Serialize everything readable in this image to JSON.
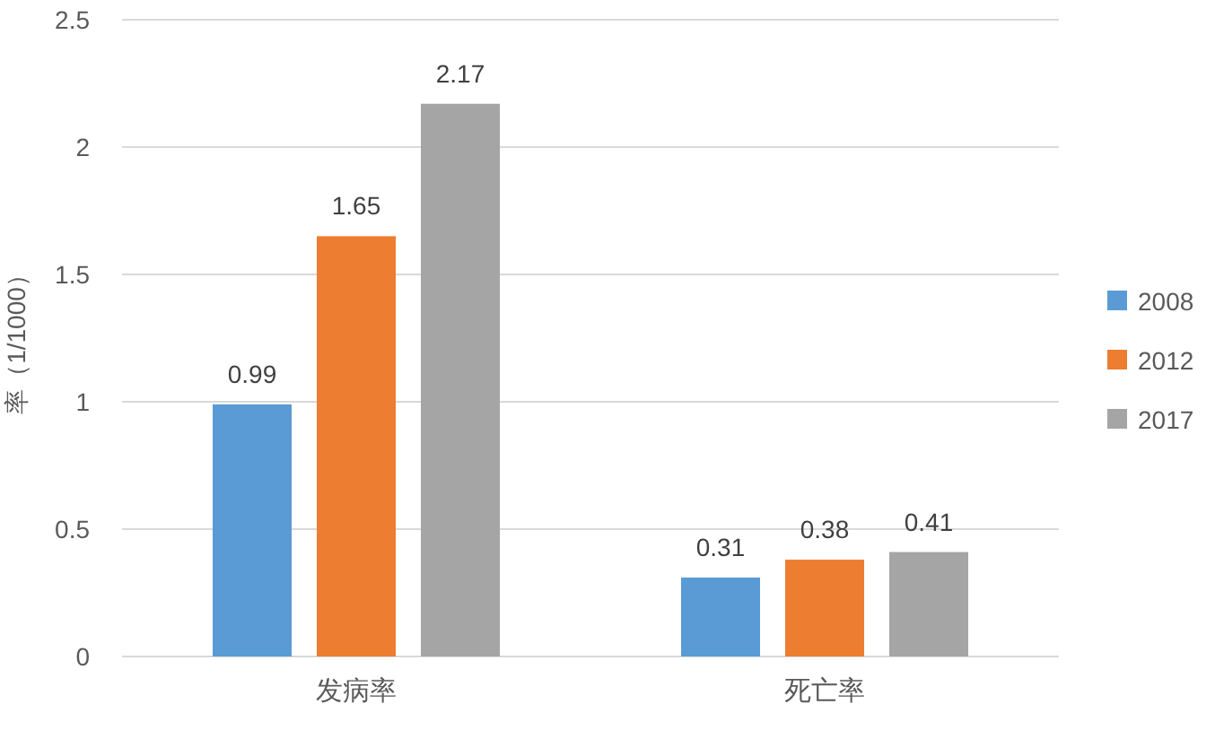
{
  "chart_data": {
    "type": "bar",
    "ylabel": "率（1/1000）",
    "categories": [
      "发病率",
      "死亡率"
    ],
    "series": [
      {
        "name": "2008",
        "color": "#5b9bd5",
        "values": [
          0.99,
          0.31
        ]
      },
      {
        "name": "2012",
        "color": "#ed7d31",
        "values": [
          1.65,
          0.38
        ]
      },
      {
        "name": "2017",
        "color": "#a5a5a5",
        "values": [
          2.17,
          0.41
        ]
      }
    ],
    "ylim": [
      0,
      2.5
    ],
    "yticks": [
      0,
      0.5,
      1,
      1.5,
      2,
      2.5
    ],
    "grid": "y",
    "legend": "right",
    "data_labels": true
  }
}
